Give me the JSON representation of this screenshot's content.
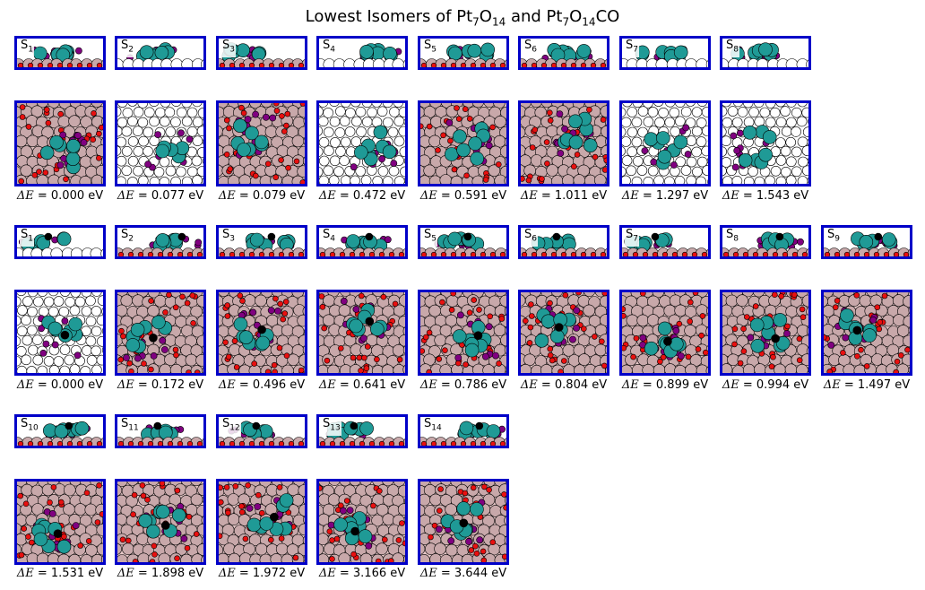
{
  "title": {
    "text": "Lowest Isomers of Pt",
    "sub1": "7",
    "mid1": "O",
    "sub2": "14",
    "mid2": " and Pt",
    "sub3": "7",
    "mid3": "O",
    "sub4": "14",
    "tail": "CO"
  },
  "delta_prefix": "ΔE",
  "colors": {
    "frame": "#0000c8",
    "pt": "#1f9a96",
    "o_ads": "#800080",
    "o_lattice": "#e81010",
    "support": "#c8a8aa",
    "white_support": "#ffffff",
    "carbon": "#000000"
  },
  "groups": [
    {
      "name": "Pt7O14",
      "isomers": [
        {
          "label": "S",
          "index": "1",
          "energy": "0.000 eV",
          "white": false
        },
        {
          "label": "S",
          "index": "2",
          "energy": "0.077 eV",
          "white": true
        },
        {
          "label": "S",
          "index": "3",
          "energy": "0.079 eV",
          "white": false
        },
        {
          "label": "S",
          "index": "4",
          "energy": "0.472 eV",
          "white": true
        },
        {
          "label": "S",
          "index": "5",
          "energy": "0.591 eV",
          "white": false
        },
        {
          "label": "S",
          "index": "6",
          "energy": "1.011 eV",
          "white": false
        },
        {
          "label": "S",
          "index": "7",
          "energy": "1.297 eV",
          "white": true
        },
        {
          "label": "S",
          "index": "8",
          "energy": "1.543 eV",
          "white": true
        }
      ]
    },
    {
      "name": "Pt7O14CO",
      "isomers": [
        {
          "label": "S",
          "index": "1",
          "energy": "0.000 eV",
          "white": true
        },
        {
          "label": "S",
          "index": "2",
          "energy": "0.172 eV",
          "white": false
        },
        {
          "label": "S",
          "index": "3",
          "energy": "0.496 eV",
          "white": false
        },
        {
          "label": "S",
          "index": "4",
          "energy": "0.641 eV",
          "white": false
        },
        {
          "label": "S",
          "index": "5",
          "energy": "0.786 eV",
          "white": false
        },
        {
          "label": "S",
          "index": "6",
          "energy": "0.804 eV",
          "white": false
        },
        {
          "label": "S",
          "index": "7",
          "energy": "0.899 eV",
          "white": false
        },
        {
          "label": "S",
          "index": "8",
          "energy": "0.994 eV",
          "white": false
        },
        {
          "label": "S",
          "index": "9",
          "energy": "1.497 eV",
          "white": false
        },
        {
          "label": "S",
          "index": "10",
          "energy": "1.531 eV",
          "white": false
        },
        {
          "label": "S",
          "index": "11",
          "energy": "1.898 eV",
          "white": false
        },
        {
          "label": "S",
          "index": "12",
          "energy": "1.972 eV",
          "white": false
        },
        {
          "label": "S",
          "index": "13",
          "energy": "3.166 eV",
          "white": false
        },
        {
          "label": "S",
          "index": "14",
          "energy": "3.644 eV",
          "white": false
        }
      ]
    }
  ]
}
